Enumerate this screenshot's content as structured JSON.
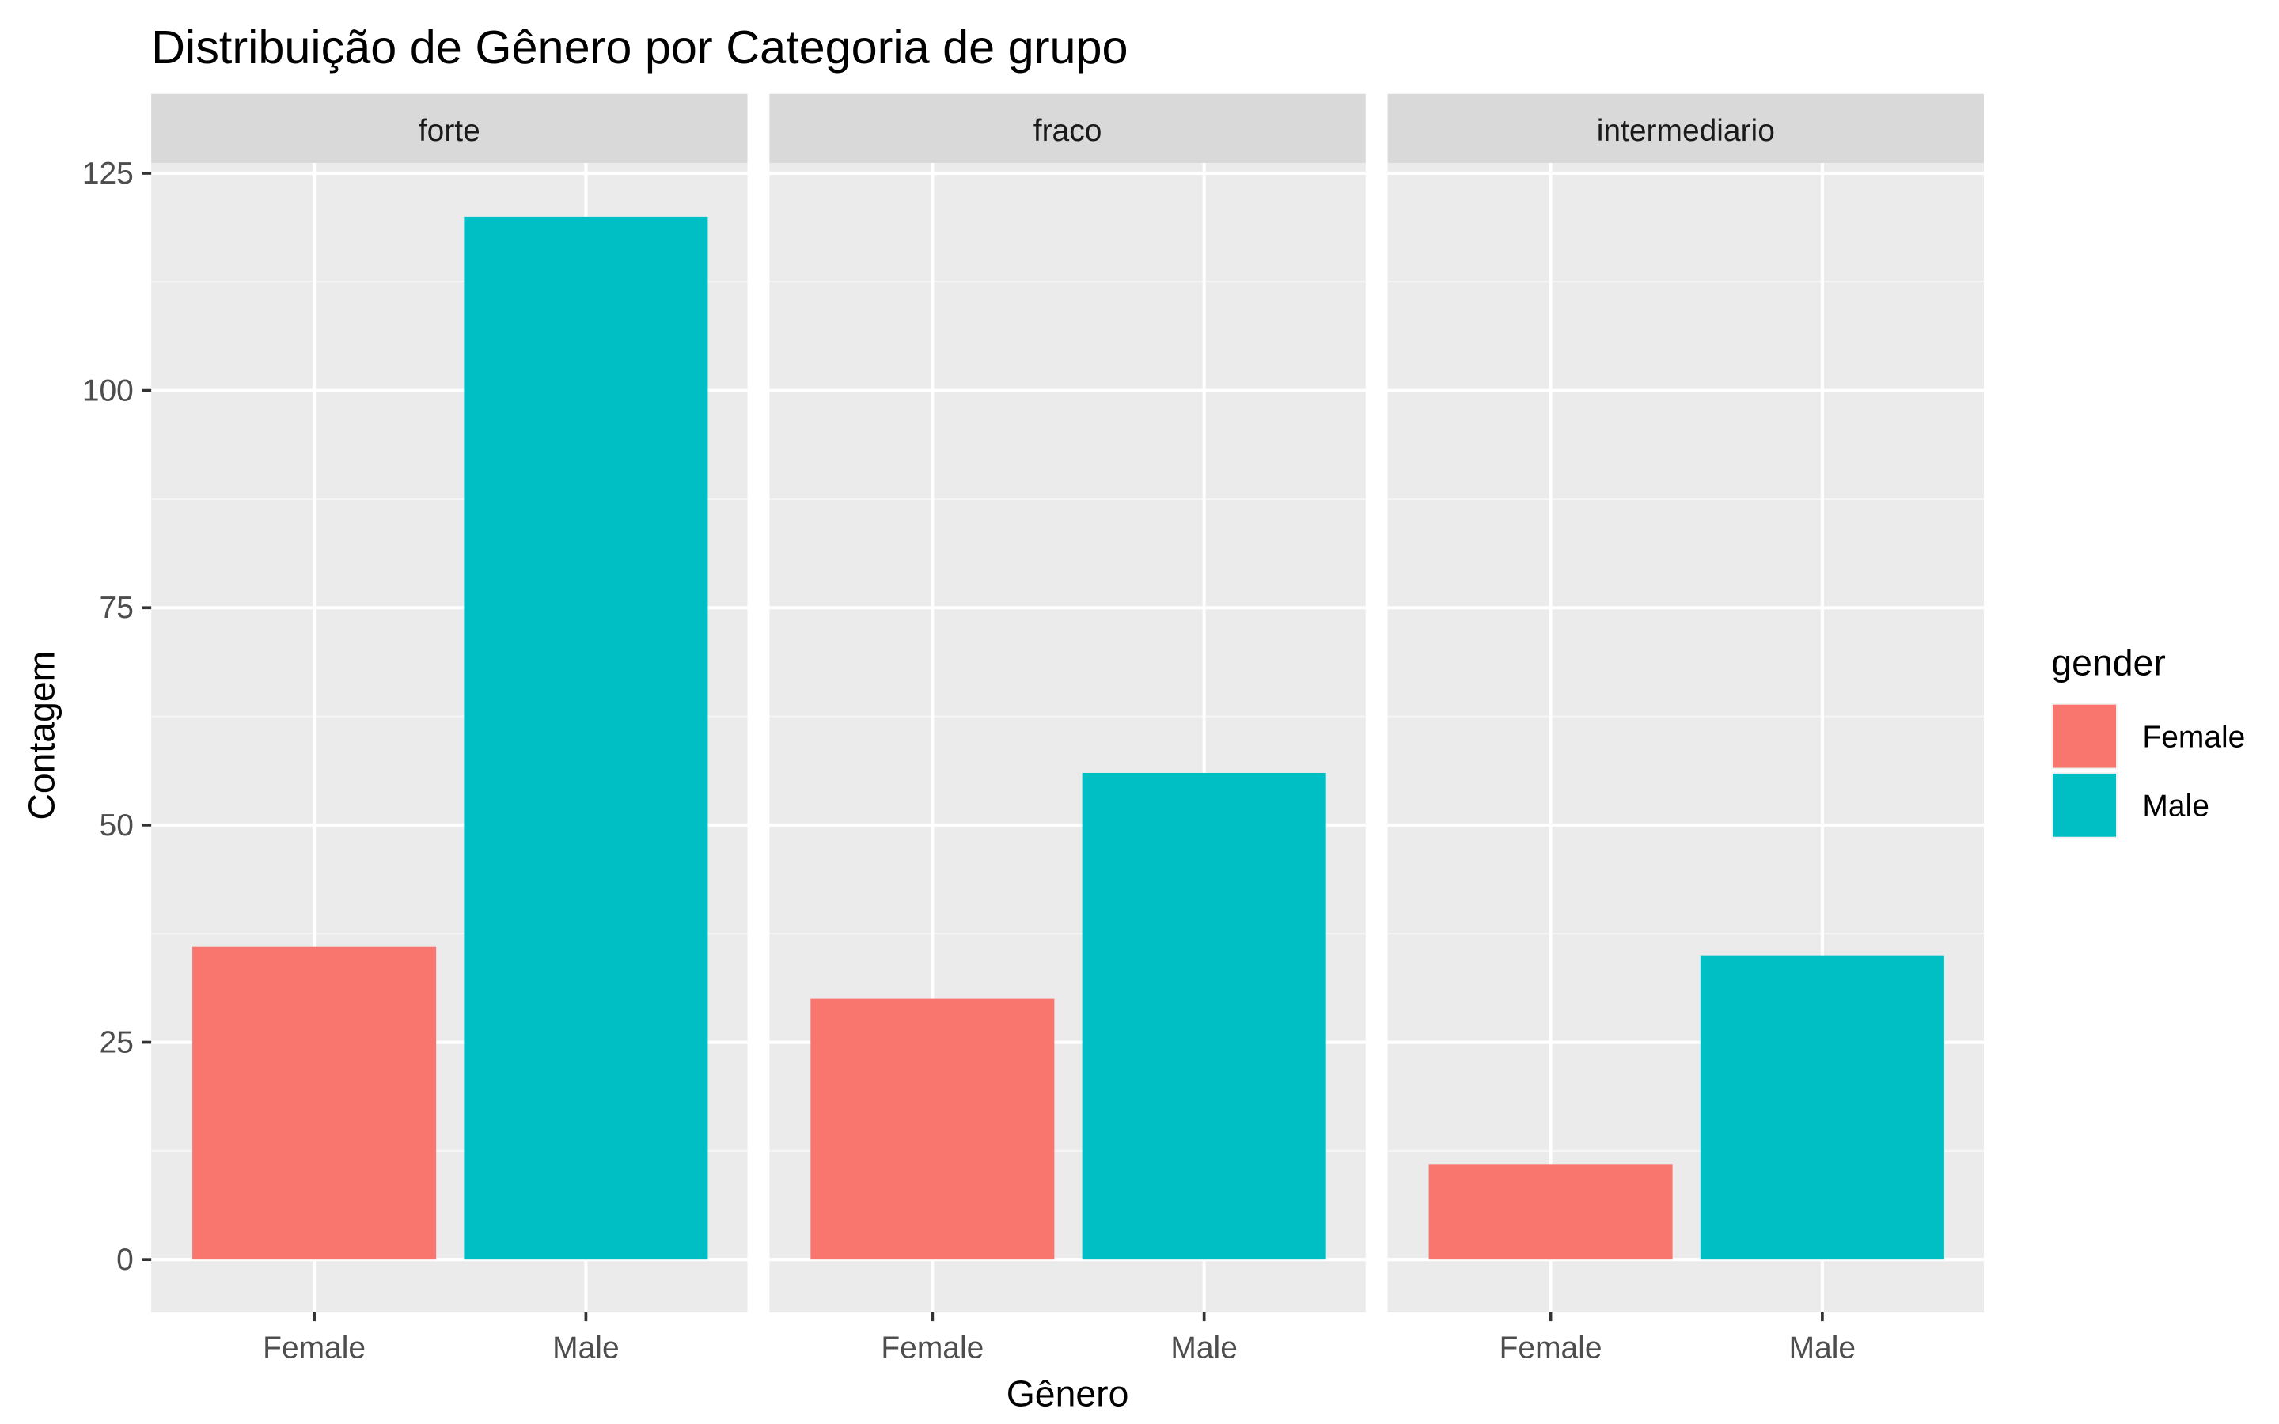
{
  "chart_data": {
    "type": "bar",
    "title": "Distribuição de Gênero por Categoria de grupo",
    "xlabel": "Gênero",
    "ylabel": "Contagem",
    "categories": [
      "Female",
      "Male"
    ],
    "ylim": [
      0,
      125
    ],
    "yticks": [
      "0",
      "25",
      "50",
      "75",
      "100",
      "125"
    ],
    "grid": true,
    "facets": [
      {
        "label": "forte",
        "values": [
          36,
          120
        ]
      },
      {
        "label": "fraco",
        "values": [
          30,
          56
        ]
      },
      {
        "label": "intermediario",
        "values": [
          11,
          35
        ]
      }
    ],
    "legend": {
      "title": "gender",
      "placement": "right",
      "items": [
        {
          "label": "Female",
          "color": "#F8766D"
        },
        {
          "label": "Male",
          "color": "#00BFC4"
        }
      ]
    }
  }
}
